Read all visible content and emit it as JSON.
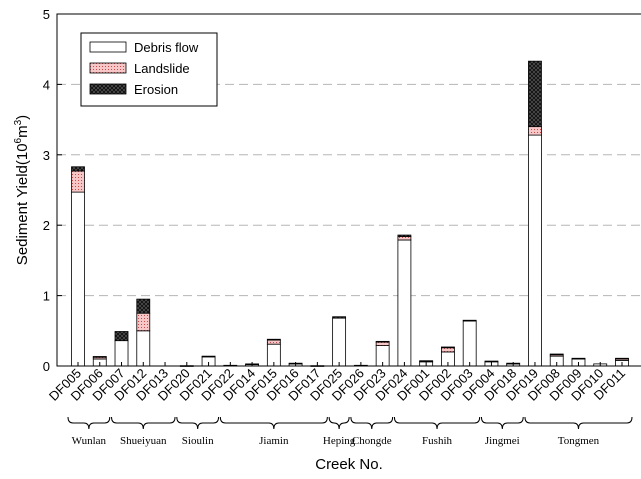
{
  "chart_data": {
    "type": "bar",
    "stacked": true,
    "xlabel": "Creek No.",
    "ylabel_main": "Sediment Yield(10",
    "ylabel_exp_base": "6",
    "ylabel_unit": "m",
    "ylabel_unit_exp": "3",
    "ylabel_close": ")",
    "ylim": [
      0,
      5
    ],
    "yticks": [
      "0",
      "1",
      "2",
      "3",
      "4",
      "5"
    ],
    "grid": "horizontal-dashed",
    "legend_position": "top-left",
    "categories": [
      "DF005",
      "DF006",
      "DF007",
      "DF012",
      "DF013",
      "DF020",
      "DF021",
      "DF022",
      "DF014",
      "DF015",
      "DF016",
      "DF017",
      "DF025",
      "DF026",
      "DF023",
      "DF024",
      "DF001",
      "DF002",
      "DF003",
      "DF004",
      "DF018",
      "DF019",
      "DF008",
      "DF009",
      "DF010",
      "DF011"
    ],
    "series": [
      {
        "name": "Debris flow",
        "pattern": "plain",
        "color": "#ffffff",
        "values": [
          2.47,
          0.1,
          0.36,
          0.5,
          0.0,
          0.005,
          0.13,
          0.01,
          0.02,
          0.31,
          0.03,
          0.005,
          0.68,
          0.01,
          0.29,
          1.79,
          0.06,
          0.2,
          0.64,
          0.06,
          0.03,
          3.28,
          0.14,
          0.1,
          0.03,
          0.08
        ]
      },
      {
        "name": "Landslide",
        "pattern": "dots-pink",
        "color": "#f4b8b8",
        "values": [
          0.3,
          0.03,
          0.0,
          0.25,
          0.0,
          0.0,
          0.0,
          0.0,
          0.0,
          0.06,
          0.0,
          0.0,
          0.0,
          0.0,
          0.05,
          0.05,
          0.01,
          0.06,
          0.0,
          0.0,
          0.0,
          0.12,
          0.02,
          0.0,
          0.0,
          0.02
        ]
      },
      {
        "name": "Erosion",
        "pattern": "crosshatch-dark",
        "color": "#333333",
        "values": [
          0.06,
          0.005,
          0.13,
          0.2,
          0.0,
          0.0,
          0.01,
          0.0,
          0.01,
          0.01,
          0.01,
          0.0,
          0.02,
          0.0,
          0.01,
          0.02,
          0.005,
          0.01,
          0.01,
          0.01,
          0.01,
          0.93,
          0.01,
          0.01,
          0.0,
          0.01
        ]
      }
    ],
    "groups": [
      {
        "name": "Wunlan",
        "start": 0,
        "end": 1
      },
      {
        "name": "Shueiyuan",
        "start": 2,
        "end": 4
      },
      {
        "name": "Sioulin",
        "start": 5,
        "end": 6
      },
      {
        "name": "Jiamin",
        "start": 7,
        "end": 11
      },
      {
        "name": "Heping",
        "start": 12,
        "end": 12
      },
      {
        "name": "Chongde",
        "start": 13,
        "end": 14
      },
      {
        "name": "Fushih",
        "start": 15,
        "end": 18
      },
      {
        "name": "Jingmei",
        "start": 19,
        "end": 20
      },
      {
        "name": "Tongmen",
        "start": 21,
        "end": 25
      }
    ]
  }
}
